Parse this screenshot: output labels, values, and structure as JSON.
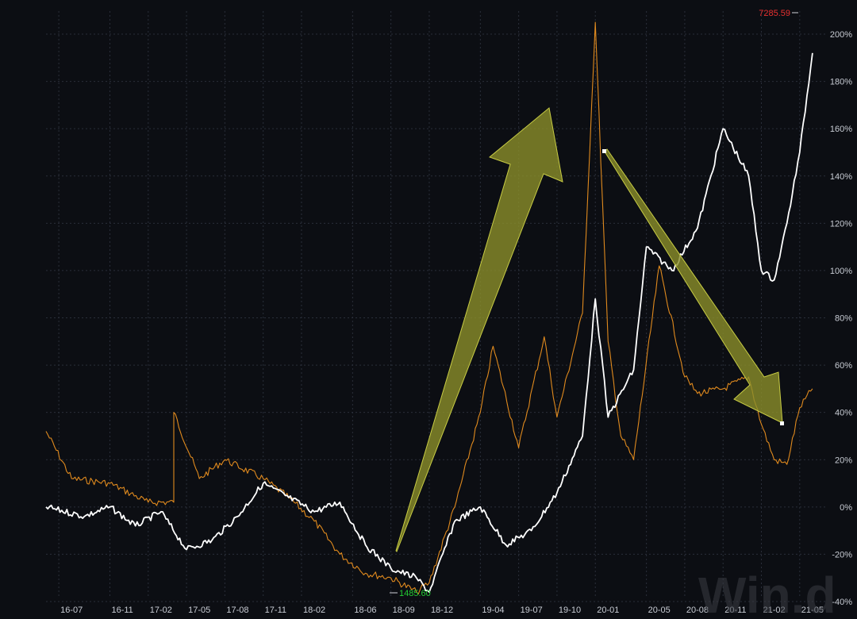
{
  "watermark": "Win.d",
  "colors": {
    "background": "#0c0e13",
    "series_white": "#ffffff",
    "series_orange": "#e08a1e",
    "arrow_fill": "#8b8f2a",
    "arrow_stroke": "#c8cc44",
    "max_label": "#e83030",
    "min_label": "#22cc33"
  },
  "chart_data": {
    "type": "line",
    "title": "",
    "xlabel": "",
    "ylabel": "",
    "x_ticks": [
      "16-07",
      "16-11",
      "17-02",
      "17-05",
      "17-08",
      "17-11",
      "18-02",
      "18-06",
      "18-09",
      "18-12",
      "19-04",
      "19-07",
      "19-10",
      "20-01",
      "20-05",
      "20-08",
      "20-11",
      "21-02",
      "21-05"
    ],
    "x_range": [
      "2016-06",
      "2021-07"
    ],
    "y_ticks": [
      "200%",
      "180%",
      "160%",
      "140%",
      "120%",
      "100%",
      "80%",
      "60%",
      "40%",
      "20%",
      "0%",
      "-20%",
      "-40%"
    ],
    "ylim": [
      -40,
      210
    ],
    "y_unit": "%",
    "grid": true,
    "annotations": {
      "max_label": "7285.59",
      "min_label": "1485.60"
    },
    "series": [
      {
        "color": "white",
        "x": [
          "2016-06",
          "2016-09",
          "2016-11",
          "2017-01",
          "2017-03",
          "2017-05",
          "2017-07",
          "2017-09",
          "2017-11",
          "2018-01",
          "2018-03",
          "2018-05",
          "2018-07",
          "2018-09",
          "2018-11",
          "2018-12",
          "2019-02",
          "2019-04",
          "2019-06",
          "2019-08",
          "2019-10",
          "2019-12",
          "2020-01",
          "2020-02",
          "2020-04",
          "2020-05",
          "2020-07",
          "2020-09",
          "2020-11",
          "2021-01",
          "2021-02",
          "2021-03",
          "2021-04",
          "2021-05",
          "2021-06"
        ],
        "y": [
          0,
          -4,
          0,
          -8,
          -2,
          -18,
          -14,
          -4,
          10,
          4,
          -2,
          2,
          -16,
          -26,
          -30,
          -36,
          -6,
          0,
          -16,
          -10,
          6,
          30,
          88,
          38,
          58,
          110,
          100,
          118,
          160,
          140,
          100,
          96,
          120,
          150,
          192
        ]
      },
      {
        "color": "orange",
        "x": [
          "2016-06",
          "2016-08",
          "2016-11",
          "2017-02",
          "2017-04",
          "2017-04",
          "2017-06",
          "2017-08",
          "2017-11",
          "2018-01",
          "2018-03",
          "2018-05",
          "2018-07",
          "2018-09",
          "2018-11",
          "2018-12",
          "2019-02",
          "2019-04",
          "2019-05",
          "2019-07",
          "2019-09",
          "2019-10",
          "2019-12",
          "2020-01",
          "2020-02",
          "2020-03",
          "2020-04",
          "2020-06",
          "2020-08",
          "2020-09",
          "2020-11",
          "2021-01",
          "2021-02",
          "2021-03",
          "2021-04",
          "2021-05",
          "2021-06"
        ],
        "y": [
          32,
          12,
          10,
          2,
          2,
          40,
          12,
          20,
          12,
          4,
          -6,
          -20,
          -28,
          -30,
          -36,
          -32,
          0,
          40,
          68,
          25,
          72,
          38,
          82,
          205,
          70,
          30,
          20,
          102,
          55,
          48,
          50,
          55,
          35,
          20,
          18,
          42,
          50
        ]
      }
    ]
  }
}
